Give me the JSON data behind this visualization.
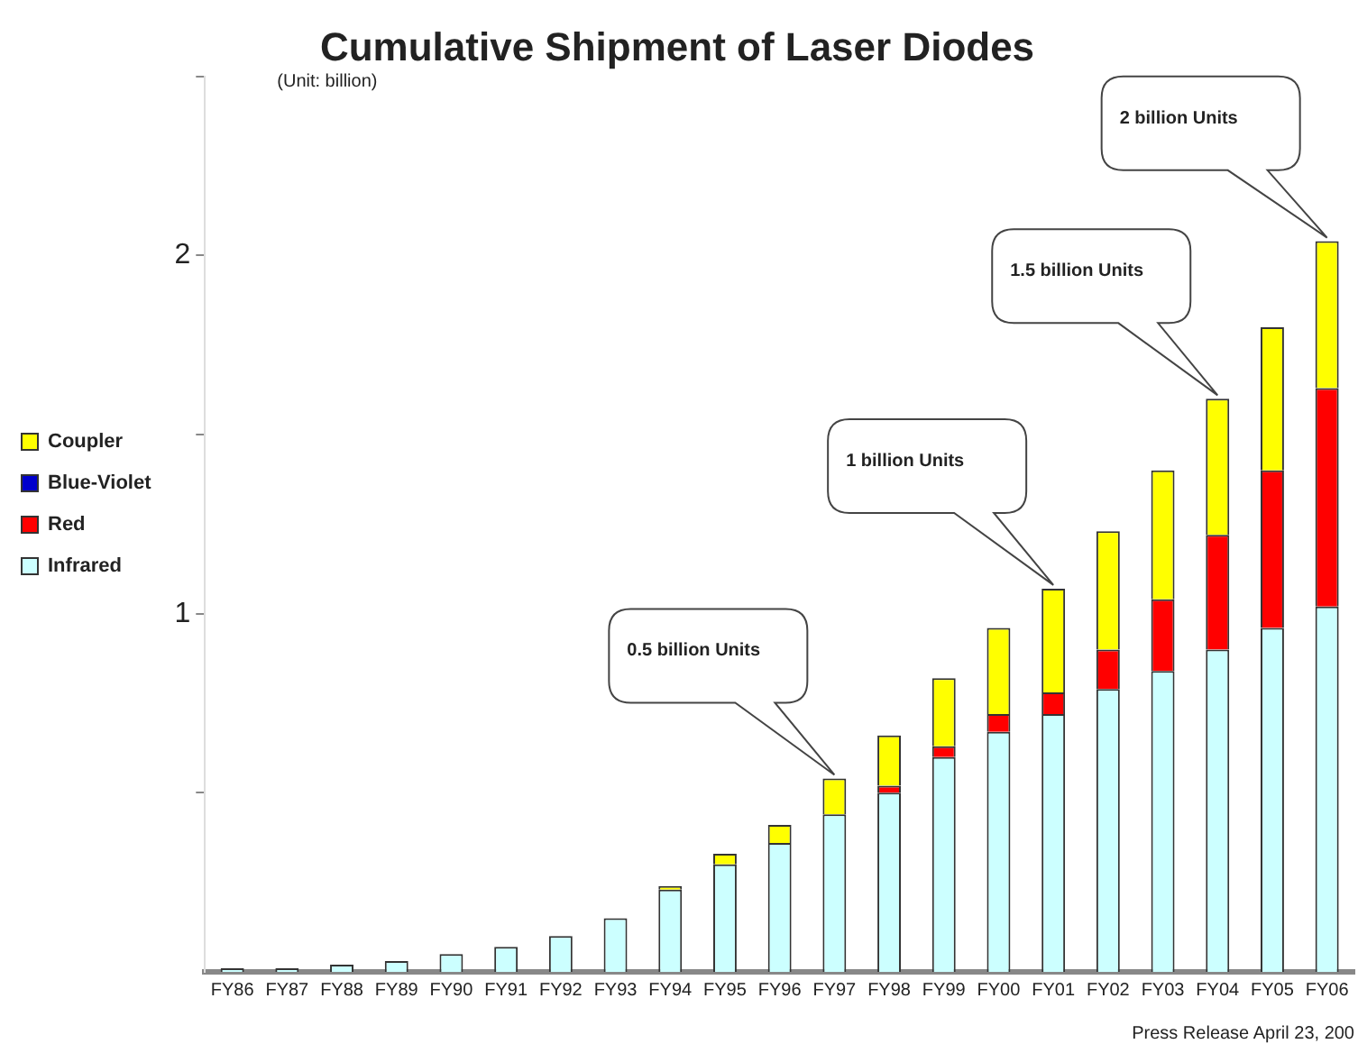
{
  "chart_data": {
    "type": "bar",
    "title": "Cumulative Shipment of Laser Diodes",
    "categories": [
      "FY86",
      "FY87",
      "FY88",
      "FY89",
      "FY90",
      "FY91",
      "FY92",
      "FY93",
      "FY94",
      "FY95",
      "FY96",
      "FY97",
      "FY98",
      "FY99",
      "FY00",
      "FY01",
      "FY02",
      "FY03",
      "FY04",
      "FY05",
      "FY06"
    ],
    "stacked": true,
    "series": [
      {
        "name": "Infrared",
        "color": "#ccffff",
        "values": [
          0.01,
          0.01,
          0.02,
          0.03,
          0.05,
          0.07,
          0.1,
          0.15,
          0.23,
          0.3,
          0.36,
          0.44,
          0.5,
          0.6,
          0.67,
          0.72,
          0.79,
          0.84,
          0.9,
          0.96,
          1.02
        ]
      },
      {
        "name": "Red",
        "color": "#ff0000",
        "values": [
          0,
          0,
          0,
          0,
          0,
          0,
          0,
          0,
          0,
          0,
          0,
          0,
          0.02,
          0.03,
          0.05,
          0.06,
          0.11,
          0.2,
          0.32,
          0.44,
          0.61
        ]
      },
      {
        "name": "Blue-Violet",
        "color": "#0000cc",
        "values": [
          0,
          0,
          0,
          0,
          0,
          0,
          0,
          0,
          0,
          0,
          0,
          0,
          0,
          0,
          0,
          0,
          0,
          0,
          0,
          0,
          0
        ]
      },
      {
        "name": "Coupler",
        "color": "#ffff00",
        "values": [
          0,
          0,
          0,
          0,
          0,
          0,
          0,
          0,
          0.01,
          0.03,
          0.05,
          0.1,
          0.14,
          0.19,
          0.24,
          0.29,
          0.33,
          0.36,
          0.38,
          0.4,
          0.41
        ]
      }
    ],
    "ylim": [
      0,
      2.5
    ],
    "yticks": [
      {
        "value": 0.5,
        "label": null
      },
      1,
      {
        "value": 1.5,
        "label": null
      },
      2,
      {
        "value": 2.5,
        "label": null
      }
    ],
    "legend": "left",
    "annotations": [
      "(Unit: billion)",
      "Press Release April 23, 200",
      "0.5 billion Units",
      "1 billion Units",
      "1.5 billion Units",
      "2 billion Units"
    ]
  }
}
